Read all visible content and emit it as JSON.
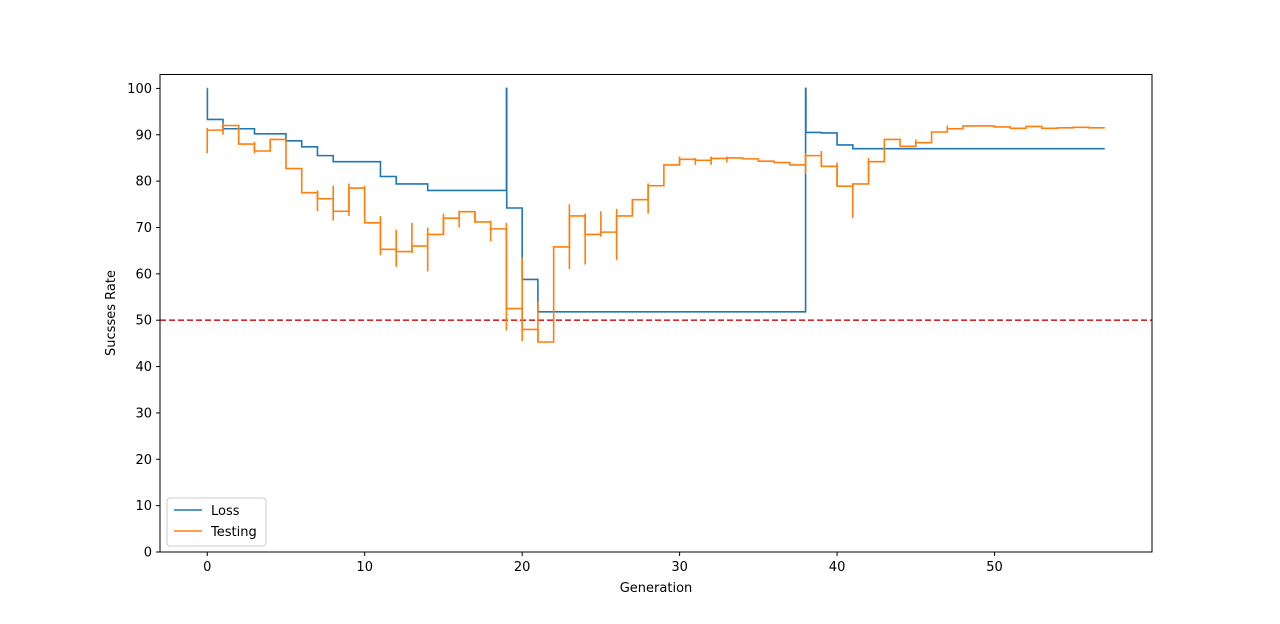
{
  "chart_data": {
    "type": "line",
    "title": "",
    "xlabel": "Generation",
    "ylabel": "Sucsses Rate",
    "xlim": [
      -3,
      60
    ],
    "ylim": [
      0,
      103
    ],
    "xticks": [
      0,
      10,
      20,
      30,
      40,
      50
    ],
    "yticks": [
      0,
      10,
      20,
      30,
      40,
      50,
      60,
      70,
      80,
      90,
      100
    ],
    "grid": false,
    "legend_position": "lower-left",
    "step": "post",
    "threshold": {
      "value": 50,
      "color": "#d62728",
      "style": "dashed"
    },
    "series": [
      {
        "name": "Loss",
        "color": "#1f77b4",
        "x": [
          0,
          0.01,
          1,
          2,
          3,
          4,
          5,
          6,
          7,
          8,
          9,
          10,
          11,
          12,
          13,
          14,
          15,
          16,
          17,
          18,
          19,
          19.02,
          20,
          21,
          22,
          23,
          24,
          25,
          26,
          27,
          28,
          29,
          30,
          31,
          32,
          33,
          34,
          35,
          36,
          37,
          38,
          38.02,
          39,
          40,
          41,
          42,
          43,
          44,
          45,
          46,
          47,
          48,
          49,
          50,
          51,
          52,
          53,
          54,
          55,
          56,
          57
        ],
        "y": [
          100,
          93.3,
          91.3,
          91.3,
          90.2,
          90.2,
          88.7,
          87.4,
          85.5,
          84.2,
          84.2,
          84.2,
          81.0,
          79.4,
          79.4,
          78.0,
          78.0,
          78.0,
          78.0,
          78.0,
          100,
          74.2,
          58.8,
          51.8,
          51.8,
          51.8,
          51.8,
          51.8,
          51.8,
          51.8,
          51.8,
          51.8,
          51.8,
          51.8,
          51.8,
          51.8,
          51.8,
          51.8,
          51.8,
          51.8,
          100,
          90.5,
          90.4,
          87.8,
          87.0,
          87.0,
          87.0,
          87.0,
          87.0,
          87.0,
          87.0,
          87.0,
          87.0,
          87.0,
          87.0,
          87.0,
          87.0,
          87.0,
          87.0,
          87.0,
          87.0
        ]
      },
      {
        "name": "Testing",
        "color": "#ff7f0e",
        "x": [
          0,
          1,
          2,
          3,
          4,
          5,
          6,
          7,
          8,
          9,
          10,
          11,
          12,
          13,
          14,
          15,
          16,
          17,
          18,
          19,
          20,
          21,
          22,
          23,
          24,
          25,
          26,
          27,
          28,
          29,
          30,
          31,
          32,
          33,
          34,
          35,
          36,
          37,
          38,
          39,
          40,
          41,
          42,
          43,
          44,
          45,
          46,
          47,
          48,
          49,
          50,
          51,
          52,
          53,
          54,
          55,
          56,
          57
        ],
        "y": [
          91.0,
          92.0,
          88.0,
          86.5,
          89.0,
          82.7,
          77.5,
          76.2,
          73.5,
          78.5,
          71.0,
          65.3,
          64.8,
          66.0,
          68.5,
          72.0,
          73.4,
          71.2,
          69.7,
          52.5,
          48.0,
          45.3,
          65.8,
          72.5,
          68.5,
          69.0,
          72.5,
          76.0,
          79.0,
          83.5,
          84.7,
          84.5,
          84.9,
          85.0,
          84.8,
          84.3,
          84.0,
          83.5,
          85.5,
          83.2,
          78.9,
          79.4,
          84.2,
          89.0,
          87.5,
          88.3,
          90.6,
          91.3,
          91.9,
          91.9,
          91.7,
          91.4,
          91.8,
          91.4,
          91.5,
          91.6,
          91.5,
          91.5
        ],
        "whiskers": [
          [
            0,
            86.0,
            91.5
          ],
          [
            1,
            90.0,
            92.5
          ],
          [
            2,
            88.0,
            90.0
          ],
          [
            3,
            86.0,
            88.5
          ],
          [
            7,
            73.5,
            78.0
          ],
          [
            8,
            71.5,
            79.0
          ],
          [
            9,
            72.5,
            79.5
          ],
          [
            10,
            72.0,
            79.0
          ],
          [
            11,
            64.0,
            72.5
          ],
          [
            12,
            61.5,
            69.5
          ],
          [
            13,
            64.5,
            71.0
          ],
          [
            14,
            60.5,
            70.0
          ],
          [
            15,
            68.5,
            73.0
          ],
          [
            16,
            70.0,
            73.5
          ],
          [
            17,
            71.0,
            73.5
          ],
          [
            18,
            67.0,
            71.5
          ],
          [
            19,
            47.8,
            71.0
          ],
          [
            20,
            45.5,
            63.5
          ],
          [
            21,
            45.3,
            54.0
          ],
          [
            23,
            61.0,
            75.0
          ],
          [
            24,
            62.0,
            73.0
          ],
          [
            25,
            68.0,
            73.5
          ],
          [
            26,
            63.0,
            74.0
          ],
          [
            27,
            72.5,
            76.0
          ],
          [
            28,
            73.0,
            79.5
          ],
          [
            30,
            83.5,
            85.3
          ],
          [
            31,
            83.5,
            85.0
          ],
          [
            32,
            83.5,
            85.3
          ],
          [
            33,
            84.0,
            85.3
          ],
          [
            38,
            81.5,
            86.0
          ],
          [
            39,
            83.0,
            86.5
          ],
          [
            40,
            79.0,
            84.0
          ],
          [
            41,
            72.0,
            79.5
          ],
          [
            42,
            80.0,
            85.0
          ],
          [
            45,
            87.5,
            89.0
          ],
          [
            47,
            91.0,
            92.0
          ]
        ]
      }
    ]
  }
}
